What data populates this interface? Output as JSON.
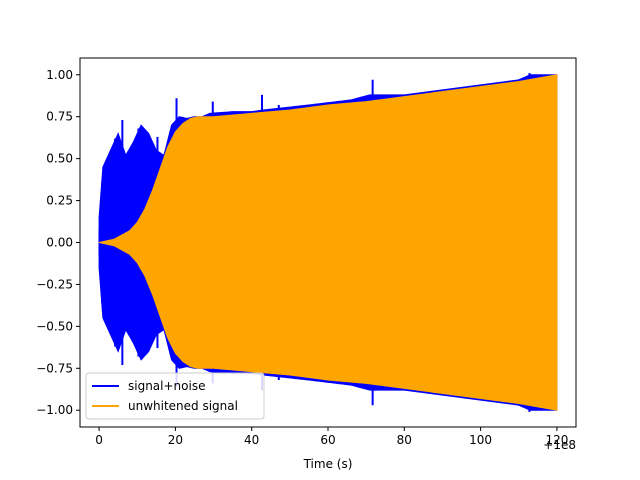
{
  "chart_data": {
    "type": "line",
    "title": "",
    "xlabel": "Time (s)",
    "ylabel": "",
    "x_offset_label": "+1e8",
    "xlim": [
      -5,
      125
    ],
    "ylim": [
      -1.1,
      1.1
    ],
    "xticks": [
      0,
      20,
      40,
      60,
      80,
      100,
      120
    ],
    "xtick_labels": [
      "0",
      "20",
      "40",
      "60",
      "80",
      "100",
      "120"
    ],
    "yticks": [
      -1.0,
      -0.75,
      -0.5,
      -0.25,
      0.0,
      0.25,
      0.5,
      0.75,
      1.0
    ],
    "ytick_labels": [
      "−1.00",
      "−0.75",
      "−0.50",
      "−0.25",
      "0.00",
      "0.25",
      "0.50",
      "0.75",
      "1.00"
    ],
    "grid": false,
    "legend_position": "lower-left",
    "series": [
      {
        "name": "signal+noise",
        "color": "#0000ff",
        "envelope": {
          "x": [
            0,
            1,
            3,
            5,
            7,
            9,
            11,
            13,
            15,
            17,
            19,
            21,
            23,
            25,
            27,
            29,
            35,
            40,
            43,
            47,
            55,
            66,
            71,
            80,
            90,
            100,
            110,
            113,
            120
          ],
          "y": [
            0.15,
            0.45,
            0.55,
            0.65,
            0.52,
            0.6,
            0.7,
            0.65,
            0.55,
            0.52,
            0.7,
            0.75,
            0.74,
            0.75,
            0.75,
            0.77,
            0.78,
            0.78,
            0.79,
            0.8,
            0.82,
            0.85,
            0.88,
            0.88,
            0.91,
            0.94,
            0.97,
            1.0,
            1.0
          ]
        },
        "spikes": [
          {
            "x": 4.2,
            "y": 0.62
          },
          {
            "x": 6.1,
            "y": 0.73
          },
          {
            "x": 9.4,
            "y": 0.55
          },
          {
            "x": 10.3,
            "y": 0.68
          },
          {
            "x": 12.7,
            "y": 0.62
          },
          {
            "x": 15.3,
            "y": 0.63
          },
          {
            "x": 20.3,
            "y": 0.86
          },
          {
            "x": 29.8,
            "y": 0.84
          },
          {
            "x": 42.7,
            "y": 0.88
          },
          {
            "x": 47.1,
            "y": 0.82
          },
          {
            "x": 66.3,
            "y": 0.85
          },
          {
            "x": 71.7,
            "y": 0.97
          },
          {
            "x": 112.8,
            "y": 1.01
          }
        ]
      },
      {
        "name": "unwhitened signal",
        "color": "#ffa500",
        "envelope": {
          "x": [
            0,
            4,
            8,
            10,
            12,
            14,
            16,
            18,
            20,
            22,
            24,
            26,
            28,
            30,
            40,
            50,
            60,
            70,
            80,
            90,
            100,
            110,
            120
          ],
          "y": [
            0.0,
            0.02,
            0.07,
            0.12,
            0.2,
            0.31,
            0.44,
            0.57,
            0.66,
            0.71,
            0.74,
            0.75,
            0.75,
            0.75,
            0.77,
            0.79,
            0.82,
            0.84,
            0.87,
            0.9,
            0.93,
            0.96,
            1.0
          ]
        }
      }
    ]
  }
}
